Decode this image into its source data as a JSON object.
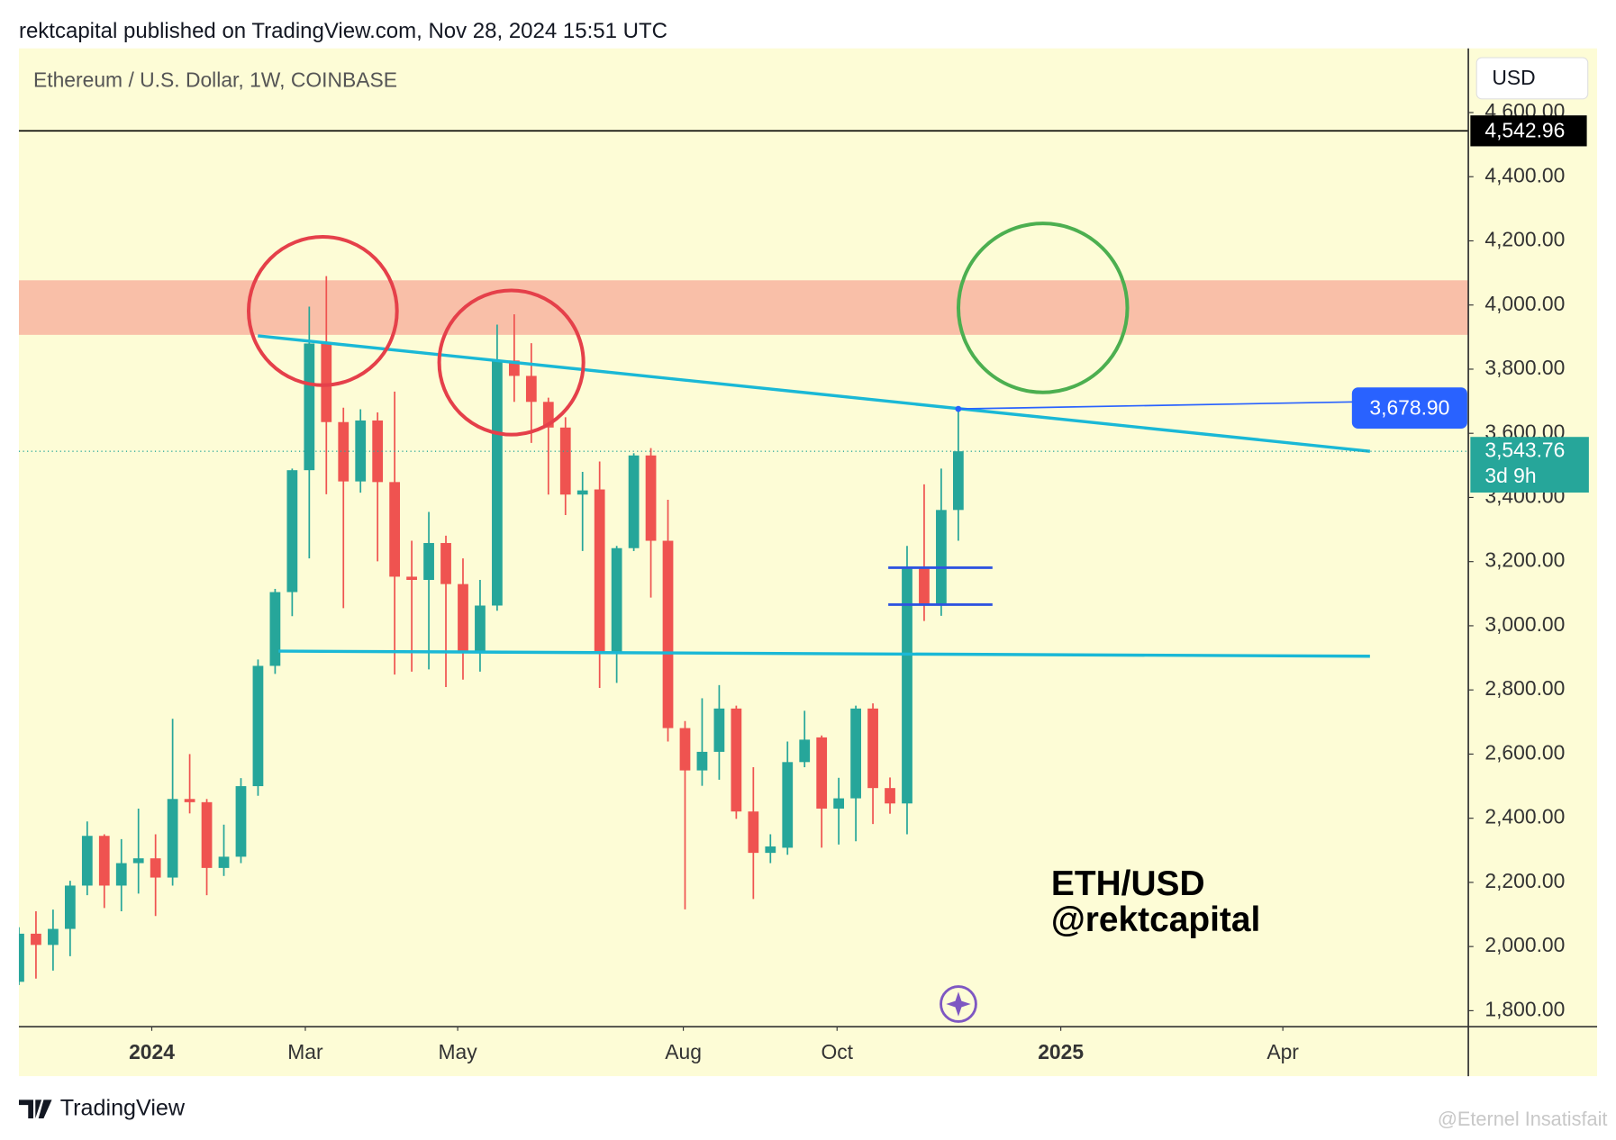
{
  "header": "rektcapital published on TradingView.com, Nov 28, 2024 15:51 UTC",
  "chart_data": {
    "type": "candlestick",
    "title": "Ethereum / U.S. Dollar, 1W, COINBASE",
    "currency": "USD",
    "x": [
      0,
      1,
      2,
      3,
      4,
      5,
      6,
      7,
      8,
      9,
      10,
      11,
      12,
      13,
      14,
      15,
      16,
      17,
      18,
      19,
      20,
      21,
      22,
      23,
      24,
      25,
      26,
      27,
      28,
      29,
      30,
      31,
      32,
      33,
      34,
      35,
      36,
      37,
      38,
      39,
      40,
      41,
      42,
      43,
      44,
      45,
      46,
      47,
      48,
      49,
      50,
      51,
      52,
      53,
      54,
      55
    ],
    "open": [
      1890,
      2040,
      2005,
      2055,
      2190,
      2345,
      2190,
      2260,
      2275,
      2215,
      2460,
      2450,
      2245,
      2280,
      2500,
      2875,
      3105,
      3485,
      3880,
      3635,
      3450,
      3640,
      3448,
      3153,
      3143,
      3258,
      3130,
      2918,
      3063,
      3827,
      3779,
      3698,
      3618,
      3409,
      3425,
      2918,
      3242,
      3531,
      3265,
      2681,
      2549,
      2607,
      2742,
      2421,
      2292,
      2308,
      2575,
      2652,
      2430,
      2462,
      2742,
      2494,
      2446,
      3181,
      3063,
      3361
    ],
    "high": [
      2060,
      2110,
      2115,
      2205,
      2390,
      2350,
      2335,
      2430,
      2350,
      2710,
      2600,
      2460,
      2380,
      2525,
      2895,
      3115,
      3490,
      3995,
      4090,
      3680,
      3675,
      3665,
      3730,
      3265,
      3355,
      3281,
      3210,
      3143,
      3939,
      3971,
      3881,
      3711,
      3650,
      3480,
      3512,
      3249,
      3538,
      3554,
      3393,
      2703,
      2774,
      2815,
      2751,
      2559,
      2350,
      2639,
      2735,
      2658,
      2526,
      2751,
      2758,
      2527,
      3249,
      3441,
      3490,
      3676
    ],
    "low": [
      1880,
      1900,
      1925,
      1970,
      2160,
      2120,
      2110,
      2165,
      2095,
      2190,
      2415,
      2160,
      2220,
      2260,
      2470,
      2850,
      3030,
      3210,
      3410,
      3055,
      3415,
      3201,
      2848,
      2857,
      2864,
      2809,
      2832,
      2857,
      3047,
      3698,
      3570,
      3409,
      3345,
      3233,
      2806,
      2822,
      3233,
      3088,
      2639,
      2116,
      2501,
      2520,
      2398,
      2148,
      2260,
      2286,
      2559,
      2308,
      2318,
      2328,
      2382,
      2414,
      2350,
      3015,
      3031,
      3265
    ],
    "close": [
      2040,
      2005,
      2055,
      2190,
      2345,
      2190,
      2260,
      2275,
      2215,
      2460,
      2450,
      2245,
      2280,
      2500,
      2875,
      3105,
      3485,
      3880,
      3635,
      3450,
      3640,
      3448,
      3153,
      3143,
      3258,
      3130,
      2918,
      3063,
      3827,
      3779,
      3698,
      3618,
      3409,
      3422,
      2918,
      3242,
      3531,
      3265,
      2681,
      2549,
      2607,
      2742,
      2421,
      2292,
      2312,
      2575,
      2645,
      2430,
      2462,
      2742,
      2494,
      2446,
      3181,
      3063,
      3361,
      3544
    ],
    "up_color": "#26a69a",
    "down_color": "#ef5350",
    "xlim": [
      0,
      84.86
    ],
    "xticks": [
      {
        "value": 7.78,
        "label": "2024"
      },
      {
        "value": 16.77,
        "label": "Mar"
      },
      {
        "value": 25.69,
        "label": "May"
      },
      {
        "value": 38.9,
        "label": "Aug"
      },
      {
        "value": 47.9,
        "label": "Oct"
      },
      {
        "value": 61.0,
        "label": "2025"
      },
      {
        "value": 74.0,
        "label": "Apr"
      }
    ],
    "ylim": [
      1750,
      4800
    ],
    "yticks": [
      {
        "value": 1800,
        "label": "1,800.00"
      },
      {
        "value": 2000,
        "label": "2,000.00"
      },
      {
        "value": 2200,
        "label": "2,200.00"
      },
      {
        "value": 2400,
        "label": "2,400.00"
      },
      {
        "value": 2600,
        "label": "2,600.00"
      },
      {
        "value": 2800,
        "label": "2,800.00"
      },
      {
        "value": 3000,
        "label": "3,000.00"
      },
      {
        "value": 3200,
        "label": "3,200.00"
      },
      {
        "value": 3400,
        "label": "3,400.00"
      },
      {
        "value": 3600,
        "label": "3,600.00"
      },
      {
        "value": 3800,
        "label": "3,800.00"
      },
      {
        "value": 4000,
        "label": "4,000.00"
      },
      {
        "value": 4200,
        "label": "4,200.00"
      },
      {
        "value": 4400,
        "label": "4,400.00"
      },
      {
        "value": 4600,
        "label": "4,600.00"
      }
    ],
    "resistance_zone": {
      "low": 3907,
      "high": 4077,
      "color": "#f9bfa8"
    },
    "high_line": {
      "value": 4542.96,
      "label": "4,542.96"
    },
    "current_price": {
      "value": 3543.76,
      "label": "3,543.76",
      "countdown": "3d 9h"
    },
    "trendlines": [
      {
        "x": [
          13.99,
          79.1
        ],
        "y": [
          3904,
          3544
        ],
        "color": "#1ab8d6"
      },
      {
        "x": [
          15.2,
          79.1
        ],
        "y": [
          2921,
          2905
        ],
        "color": "#1ab8d6"
      },
      {
        "x": [
          50.9,
          57.0
        ],
        "y": [
          3181,
          3181
        ],
        "color": "#2f54e0"
      },
      {
        "x": [
          50.9,
          57.0
        ],
        "y": [
          3066,
          3066
        ],
        "color": "#2f54e0"
      }
    ],
    "measure": {
      "x": [
        55,
        78.2
      ],
      "y": [
        3676,
        3698
      ],
      "label": {
        "value": 3678.9,
        "label": "3,678.90"
      },
      "color": "#2962ff"
    },
    "annotations": [
      "ETH/USD",
      "@rektcapital"
    ]
  },
  "footer": "TradingView",
  "watermark": "@Eternel Insatisfait"
}
